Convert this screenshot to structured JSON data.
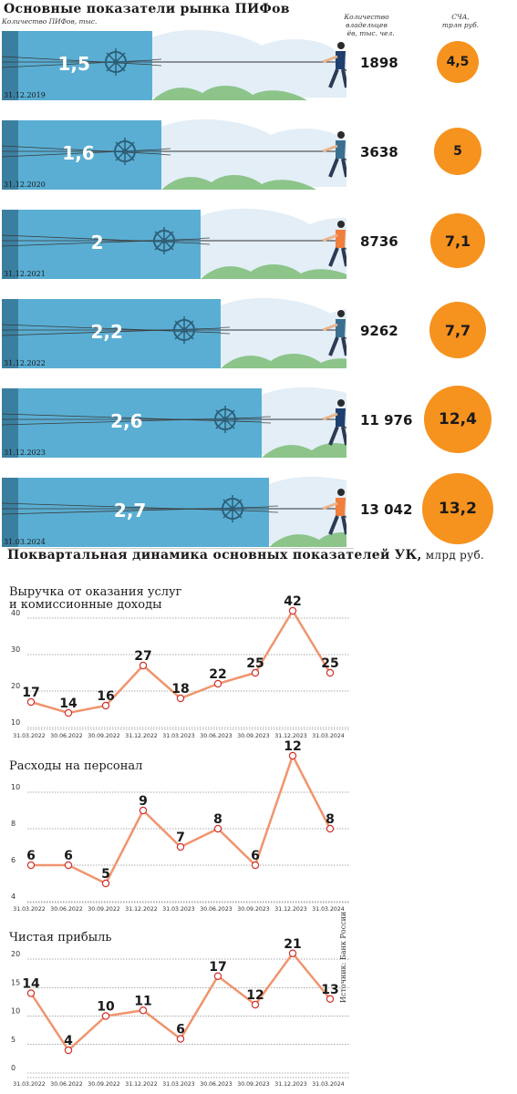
{
  "market": {
    "title": "Основные показатели рынка ПИФов",
    "funds_header": "Количество ПИФов, тыс.",
    "owners_header": [
      "Количество владельцев",
      "паёв, тыс. чел."
    ],
    "nav_header": [
      "СЧА,",
      "трлн руб."
    ],
    "rows": [
      {
        "date": "31.12.2019",
        "funds": "1,5",
        "owners": "1898",
        "nav": "4,5"
      },
      {
        "date": "31.12.2020",
        "funds": "1,6",
        "owners": "3638",
        "nav": "5"
      },
      {
        "date": "31.12.2021",
        "funds": "2",
        "owners": "8736",
        "nav": "7,1"
      },
      {
        "date": "31.12.2022",
        "funds": "2,2",
        "owners": "9262",
        "nav": "7,7"
      },
      {
        "date": "31.12.2023",
        "funds": "2,6",
        "owners": "11 976",
        "nav": "12,4"
      },
      {
        "date": "31.03.2024",
        "funds": "2,7",
        "owners": "13 042",
        "nav": "13,2"
      }
    ]
  },
  "quarterly": {
    "title_bold": "Поквартальная динамика основных показателей УК,",
    "title_rest": " млрд руб."
  },
  "source": "Источник: Банк России",
  "colors": {
    "line": "#f0946d",
    "blue": "#5aaed3",
    "blue_dark": "#3b7fa0",
    "orange": "#f6921e",
    "green": "#8cc48a",
    "sky": "#e3eef7"
  },
  "chart_data": [
    {
      "type": "line",
      "title": "Выручка от оказания услуг и комиссионные доходы",
      "title_lines": [
        "Выручка от оказания услуг",
        "и комиссионные доходы"
      ],
      "categories": [
        "31.03.2022",
        "30.06.2022",
        "30.09.2022",
        "31.12.2022",
        "31.03.2023",
        "30.06.2023",
        "30.09.2023",
        "31.12.2023",
        "31.03.2024"
      ],
      "values": [
        17,
        14,
        16,
        27,
        18,
        22,
        25,
        42,
        25
      ],
      "yticks": [
        10,
        20,
        30,
        40
      ],
      "ylim": [
        10,
        40
      ],
      "grid": true
    },
    {
      "type": "line",
      "title": "Расходы на персонал",
      "title_lines": [
        "Расходы на персонал"
      ],
      "categories": [
        "31.03.2022",
        "30.06.2022",
        "30.09.2022",
        "31.12.2022",
        "31.03.2023",
        "30.06.2023",
        "30.09.2023",
        "31.12.2023",
        "31.03.2024"
      ],
      "values": [
        6,
        6,
        5,
        9,
        7,
        8,
        6,
        12,
        8
      ],
      "yticks": [
        4,
        6,
        8,
        10
      ],
      "ylim": [
        4,
        10
      ],
      "grid": true
    },
    {
      "type": "line",
      "title": "Чистая прибыль",
      "title_lines": [
        "Чистая прибыль"
      ],
      "categories": [
        "31.03.2022",
        "30.06.2022",
        "30.09.2022",
        "31.12.2022",
        "31.03.2023",
        "30.06.2023",
        "30.09.2023",
        "31.12.2023",
        "31.03.2024"
      ],
      "values": [
        14,
        4,
        10,
        11,
        6,
        17,
        12,
        21,
        13
      ],
      "yticks": [
        0,
        5,
        10,
        15,
        20
      ],
      "ylim": [
        0,
        20
      ],
      "grid": true
    }
  ]
}
